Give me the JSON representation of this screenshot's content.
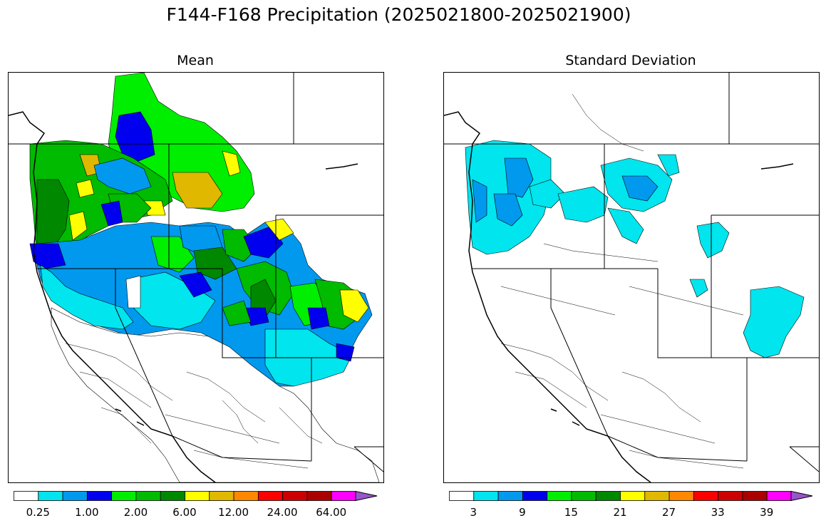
{
  "figure": {
    "title": "F144-F168 Precipitation (2025021800-2025021900)"
  },
  "panels": [
    {
      "title": "Mean",
      "colorbar": {
        "colors": [
          "#ffffff",
          "#00e5ee",
          "#0099ee",
          "#0000ee",
          "#00ee00",
          "#00bb00",
          "#008800",
          "#ffff00",
          "#e0b800",
          "#ff8800",
          "#ff0000",
          "#cc0000",
          "#aa0000",
          "#ff00ff",
          "#9955cc"
        ],
        "tick_labels": [
          "0.25",
          "1.00",
          "2.00",
          "6.00",
          "12.00",
          "24.00",
          "64.00"
        ],
        "extend": "max"
      }
    },
    {
      "title": "Standard Deviation",
      "colorbar": {
        "colors": [
          "#ffffff",
          "#00e5ee",
          "#0099ee",
          "#0000ee",
          "#00ee00",
          "#00bb00",
          "#008800",
          "#ffff00",
          "#e0b800",
          "#ff8800",
          "#ff0000",
          "#cc0000",
          "#aa0000",
          "#ff00ff",
          "#9955cc"
        ],
        "tick_labels": [
          "3",
          "9",
          "15",
          "21",
          "27",
          "33",
          "39"
        ],
        "extend": "max"
      }
    }
  ]
}
